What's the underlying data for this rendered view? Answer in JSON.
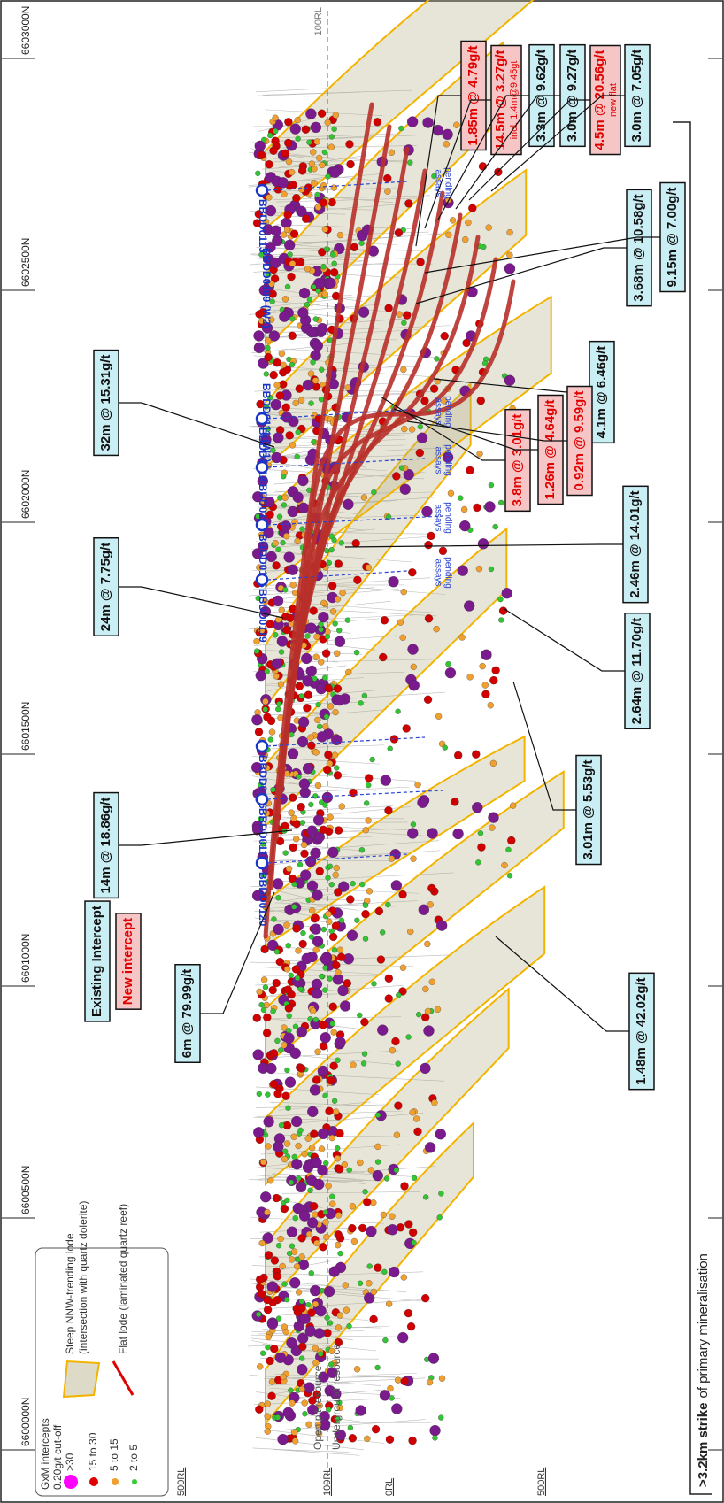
{
  "eastings": [
    "6600000N",
    "6600500N",
    "6601000N",
    "6601500N",
    "6602000N",
    "6602500N",
    "6603000N"
  ],
  "rl_top": "100RL",
  "rl_labels": [
    "500RL",
    "100RL",
    "0RL",
    "500RL"
  ],
  "resource_labels": [
    "Open pit resource",
    "Underground resource"
  ],
  "strike_note": {
    "bold": ">3.2km strike",
    "rest": "of primary mineralisation"
  },
  "legend": {
    "title": "GxM intercepts",
    "subtitle": "0.20g/t cut-off",
    "grades": [
      ">30",
      "15 to 30",
      "5 to 15",
      "2 to 5"
    ],
    "steep": [
      "Steep NNW-trending lode",
      "(intersection with quartz dolerite)"
    ],
    "flat": "Flat lode (laminated quartz reef)"
  },
  "key": {
    "existing": "Existing Intercept",
    "new": "New intercept"
  },
  "holes": [
    {
      "name": "BBDD0113",
      "note": [
        "assays",
        "pending"
      ]
    },
    {
      "name": "BBDD0109 (W2)"
    },
    {
      "name": "BBDD0111 (W1)"
    },
    {
      "name": "BBDD0112",
      "note": [
        "assays",
        "pending"
      ]
    },
    {
      "name": "BBDD0114",
      "note": [
        "assays",
        "pending"
      ]
    },
    {
      "name": "BBDD0115",
      "note": [
        "assays",
        "pending"
      ]
    },
    {
      "name": "BBDD0119",
      "note": [
        "assays",
        "pending"
      ]
    },
    {
      "name": "BBDD0116"
    },
    {
      "name": "BBDD0118"
    },
    {
      "name": "BBDD0120"
    }
  ],
  "intercepts": [
    {
      "text": "1.85m @ 4.79g/t",
      "new": true
    },
    {
      "text": "14.5m @ 3.27g/t",
      "sub": "incl. 1.4m@9.45gt",
      "new": true
    },
    {
      "text": "3.3m @ 9.62g/t",
      "new": false
    },
    {
      "text": "3.0m @ 9.27g/t",
      "new": false
    },
    {
      "text": "4.5m @ 20.56g/t",
      "sub": "new flat",
      "new": true
    },
    {
      "text": "3.0m @ 7.05g/t",
      "new": false
    },
    {
      "text": "3.68m @ 10.58g/t",
      "new": false
    },
    {
      "text": "9.15m @ 7.00g/t",
      "new": false
    },
    {
      "text": "4.1m @ 6.46g/t",
      "new": false
    },
    {
      "text": "3.8m @ 3.01g/t",
      "new": true
    },
    {
      "text": "1.26m @ 4.64g/t",
      "new": true
    },
    {
      "text": "0.92m @ 9.59g/t",
      "new": true
    },
    {
      "text": "2.46m @ 14.01g/t",
      "new": false
    },
    {
      "text": "2.64m @ 11.70g/t",
      "new": false
    },
    {
      "text": "3.01m @ 5.53g/t",
      "new": false
    },
    {
      "text": "1.48m @ 42.02g/t",
      "new": false
    },
    {
      "text": "32m @ 15.31g/t",
      "new": false
    },
    {
      "text": "24m @ 7.75g/t",
      "new": false
    },
    {
      "text": "14m @ 18.86g/t",
      "new": false
    },
    {
      "text": "6m @ 79.99g/t",
      "new": false
    }
  ]
}
